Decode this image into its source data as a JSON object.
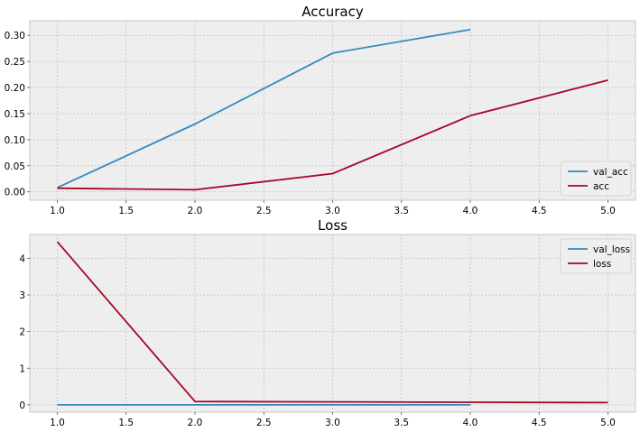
{
  "chart_data": [
    {
      "type": "line",
      "title": "Accuracy",
      "xlabel": "",
      "ylabel": "",
      "xlim": [
        0.8,
        5.2
      ],
      "ylim": [
        -0.016,
        0.328
      ],
      "xticks": [
        1.0,
        1.5,
        2.0,
        2.5,
        3.0,
        3.5,
        4.0,
        4.5,
        5.0
      ],
      "xtick_labels": [
        "1.0",
        "1.5",
        "2.0",
        "2.5",
        "3.0",
        "3.5",
        "4.0",
        "4.5",
        "5.0"
      ],
      "yticks": [
        0.0,
        0.05,
        0.1,
        0.15,
        0.2,
        0.25,
        0.3
      ],
      "ytick_labels": [
        "0.00",
        "0.05",
        "0.10",
        "0.15",
        "0.20",
        "0.25",
        "0.30"
      ],
      "grid": true,
      "legend_position": "lower-right",
      "series": [
        {
          "name": "val_acc",
          "color": "#348abd",
          "x": [
            1,
            2,
            3,
            4
          ],
          "y": [
            0.008,
            0.13,
            0.266,
            0.311
          ]
        },
        {
          "name": "acc",
          "color": "#a60628",
          "x": [
            1,
            2,
            3,
            4,
            5
          ],
          "y": [
            0.007,
            0.004,
            0.035,
            0.146,
            0.214
          ]
        }
      ]
    },
    {
      "type": "line",
      "title": "Loss",
      "xlabel": "",
      "ylabel": "",
      "xlim": [
        0.8,
        5.2
      ],
      "ylim": [
        -0.2,
        4.65
      ],
      "xticks": [
        1.0,
        1.5,
        2.0,
        2.5,
        3.0,
        3.5,
        4.0,
        4.5,
        5.0
      ],
      "xtick_labels": [
        "1.0",
        "1.5",
        "2.0",
        "2.5",
        "3.0",
        "3.5",
        "4.0",
        "4.5",
        "5.0"
      ],
      "yticks": [
        0,
        1,
        2,
        3,
        4
      ],
      "ytick_labels": [
        "0",
        "1",
        "2",
        "3",
        "4"
      ],
      "grid": true,
      "legend_position": "upper-right",
      "series": [
        {
          "name": "val_loss",
          "color": "#348abd",
          "x": [
            1,
            2,
            3,
            4
          ],
          "y": [
            0.0,
            0.0,
            0.0,
            0.0
          ]
        },
        {
          "name": "loss",
          "color": "#a60628",
          "x": [
            1,
            2,
            3,
            4,
            5
          ],
          "y": [
            4.45,
            0.09,
            0.08,
            0.07,
            0.06
          ]
        }
      ]
    }
  ]
}
